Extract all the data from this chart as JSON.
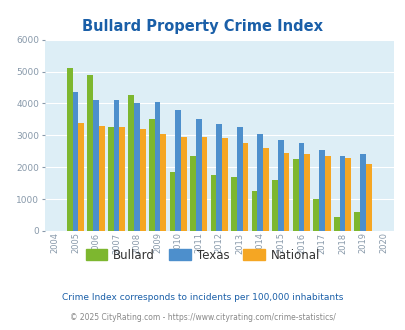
{
  "title": "Bullard Property Crime Index",
  "years": [
    2004,
    2005,
    2006,
    2007,
    2008,
    2009,
    2010,
    2011,
    2012,
    2013,
    2014,
    2015,
    2016,
    2017,
    2018,
    2019,
    2020
  ],
  "bullard": [
    null,
    5100,
    4900,
    3250,
    4250,
    3500,
    1850,
    2350,
    1750,
    1700,
    1250,
    1600,
    2250,
    1000,
    450,
    600,
    null
  ],
  "texas": [
    null,
    4350,
    4100,
    4100,
    4000,
    4050,
    3800,
    3500,
    3350,
    3250,
    3050,
    2850,
    2750,
    2550,
    2350,
    2400,
    null
  ],
  "national": [
    null,
    3400,
    3300,
    3250,
    3200,
    3050,
    2950,
    2950,
    2900,
    2750,
    2600,
    2450,
    2400,
    2350,
    2300,
    2100,
    null
  ],
  "bullard_color": "#7db72f",
  "texas_color": "#4d8fcc",
  "national_color": "#f5a623",
  "bg_color": "#ddeef6",
  "ylim": [
    0,
    6000
  ],
  "yticks": [
    0,
    1000,
    2000,
    3000,
    4000,
    5000,
    6000
  ],
  "footnote1": "Crime Index corresponds to incidents per 100,000 inhabitants",
  "footnote2": "© 2025 CityRating.com - https://www.cityrating.com/crime-statistics/",
  "title_color": "#1a5fa8",
  "footnote1_color": "#1a5fa8",
  "footnote2_color": "#888888"
}
